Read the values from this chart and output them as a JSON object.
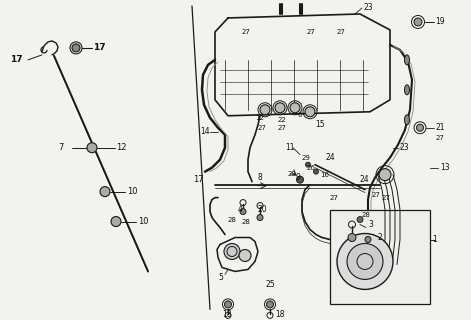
{
  "bg_color": "#f2f2ee",
  "line_color": "#1a1a1a",
  "text_color": "#111111",
  "fig_width": 4.71,
  "fig_height": 3.2,
  "dpi": 100
}
